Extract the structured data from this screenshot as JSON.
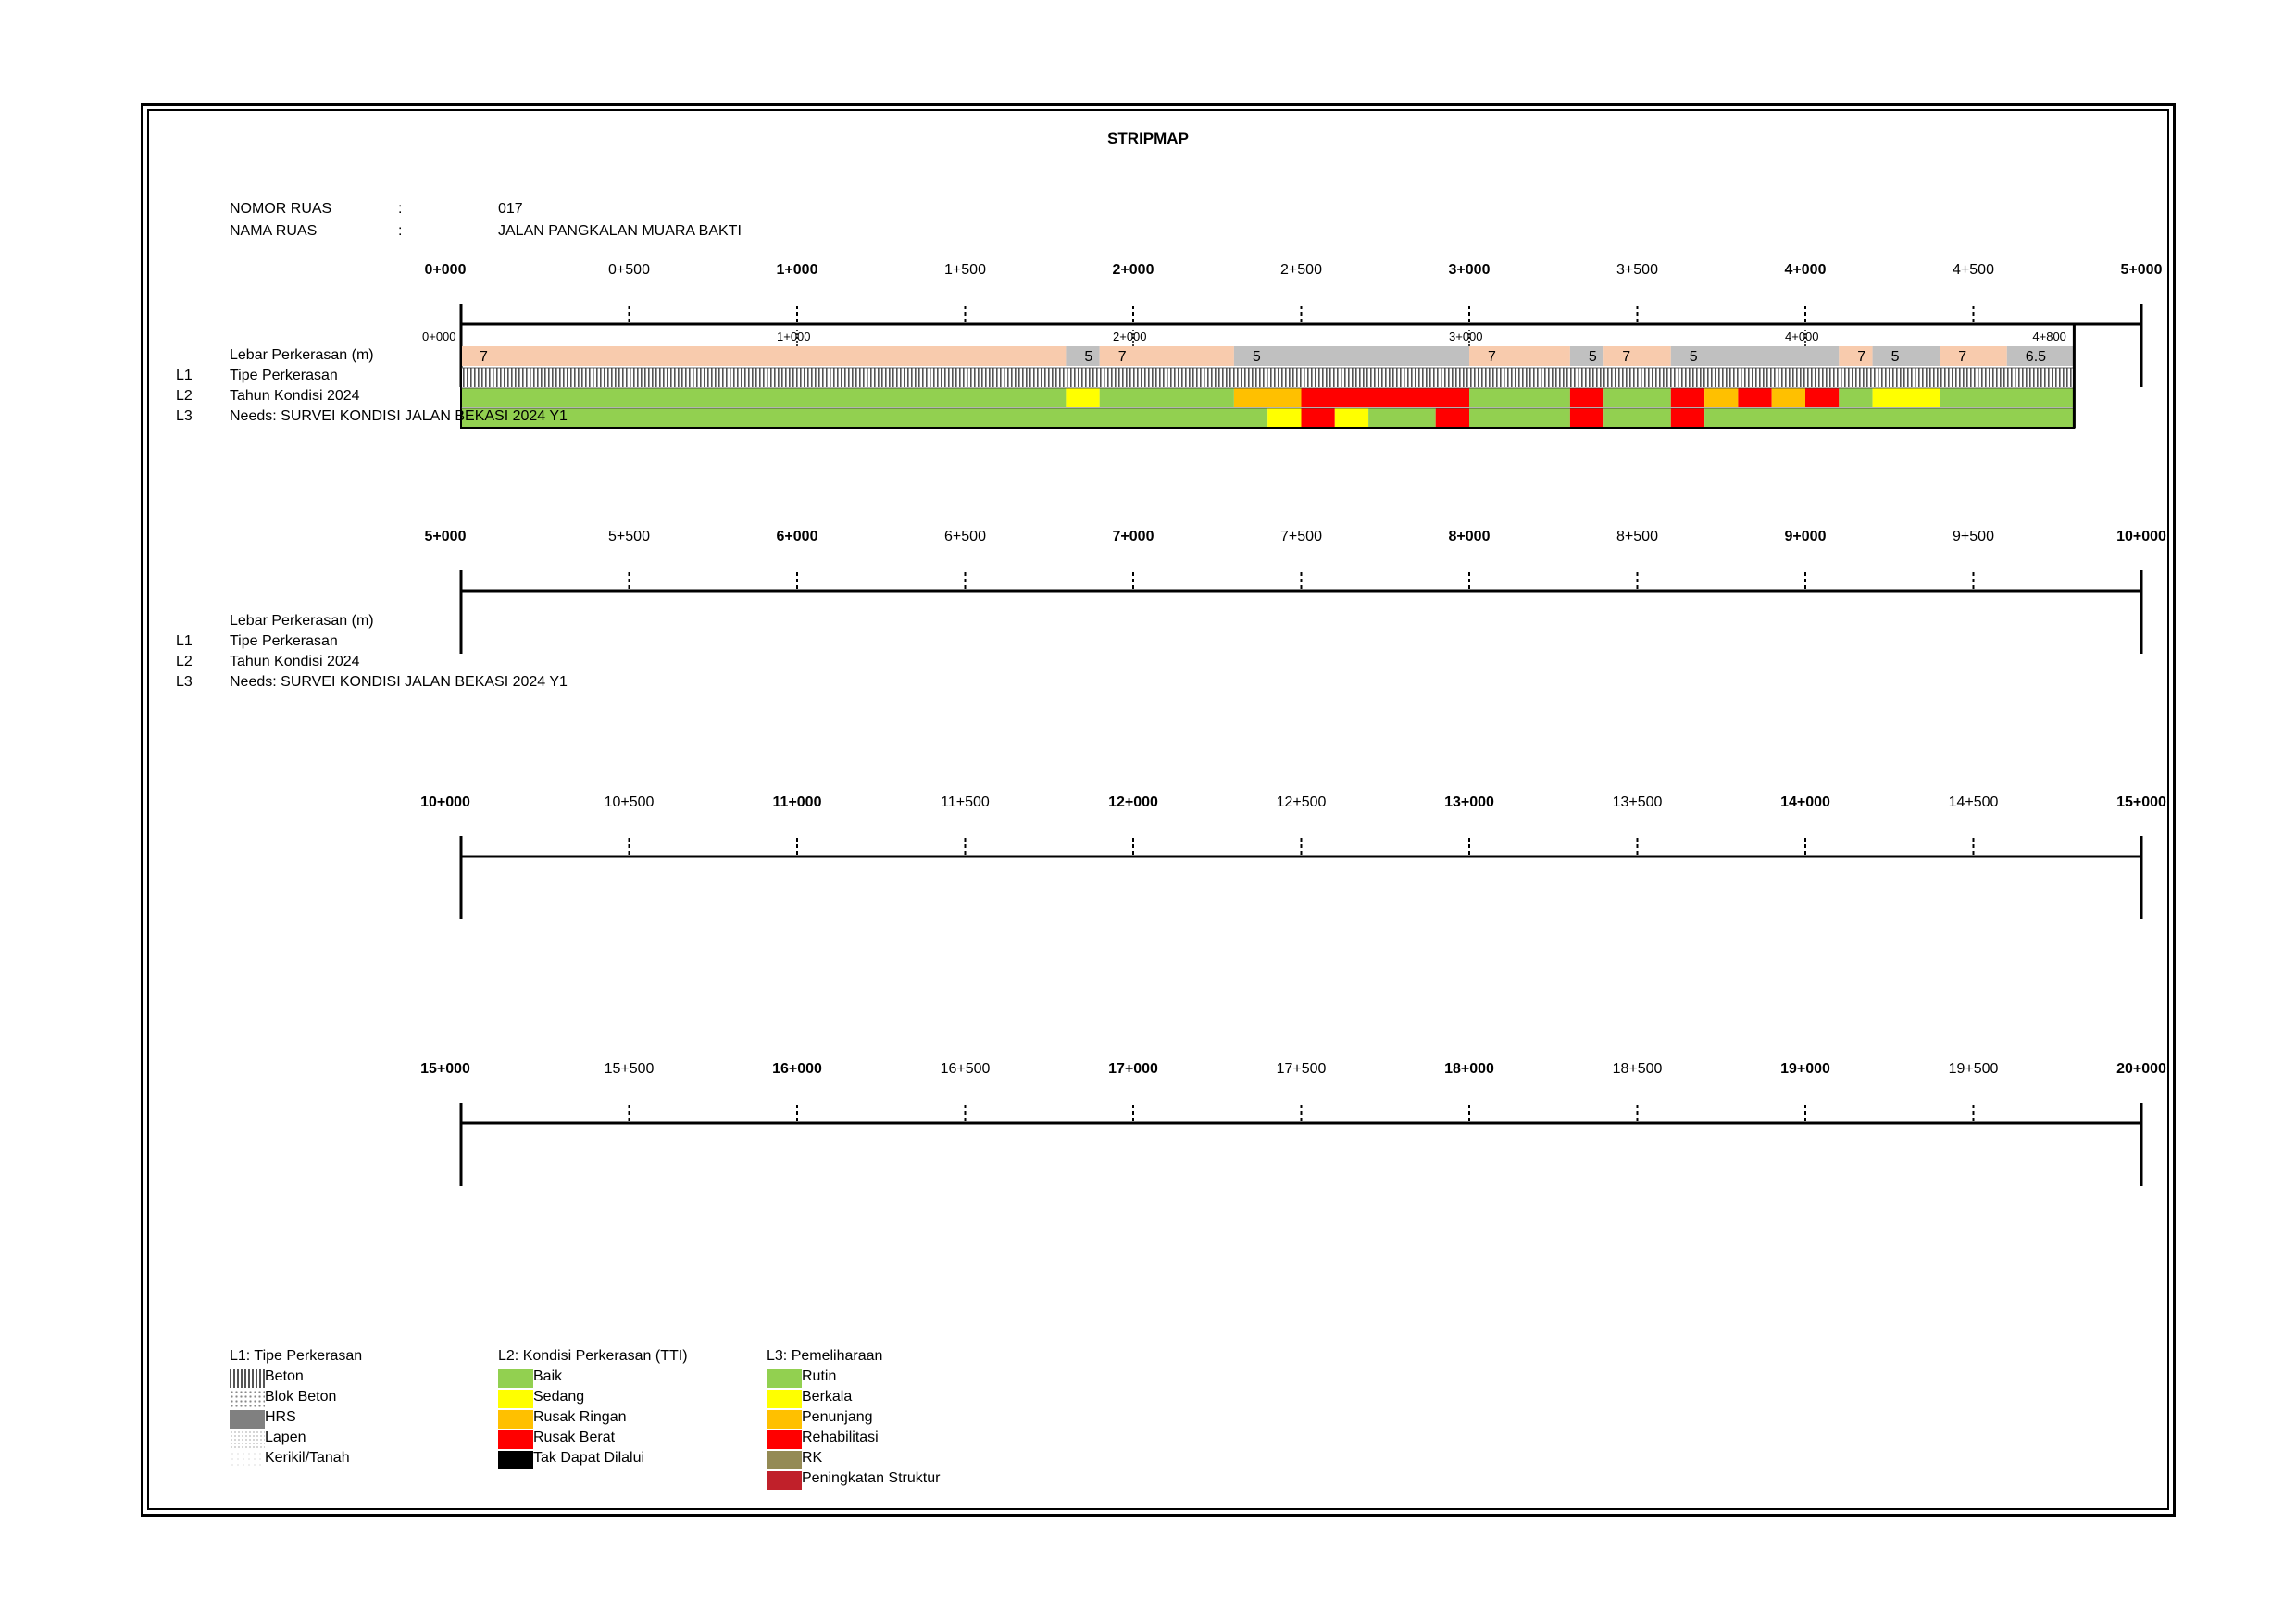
{
  "title": "STRIPMAP",
  "info": {
    "nomor_ruas_label": "NOMOR RUAS",
    "nomor_ruas_sep": ":",
    "nomor_ruas_value": "017",
    "nama_ruas_label": "NAMA RUAS",
    "nama_ruas_sep": ":",
    "nama_ruas_value": "JALAN PANGKALAN MUARA BAKTI"
  },
  "row_labels": {
    "width": "Lebar Perkerasan (m)",
    "l1_code": "L1",
    "l1": "Tipe Perkerasan",
    "l2_code": "L2",
    "l2": "Tahun Kondisi 2024",
    "l3_code": "L3",
    "l3": "Needs: SURVEI KONDISI JALAN BEKASI 2024 Y1"
  },
  "panels": [
    {
      "ticks": [
        "0+000",
        "0+500",
        "1+000",
        "1+500",
        "2+000",
        "2+500",
        "3+000",
        "3+500",
        "4+000",
        "4+500",
        "5+000"
      ]
    },
    {
      "ticks": [
        "5+000",
        "5+500",
        "6+000",
        "6+500",
        "7+000",
        "7+500",
        "8+000",
        "8+500",
        "9+000",
        "9+500",
        "10+000"
      ]
    },
    {
      "ticks": [
        "10+000",
        "10+500",
        "11+000",
        "11+500",
        "12+000",
        "12+500",
        "13+000",
        "13+500",
        "14+000",
        "14+500",
        "15+000"
      ]
    },
    {
      "ticks": [
        "15+000",
        "15+500",
        "16+000",
        "16+500",
        "17+000",
        "17+500",
        "18+000",
        "18+500",
        "19+000",
        "19+500",
        "20+000"
      ]
    }
  ],
  "segment_markers": [
    {
      "km": 0,
      "label": "0+000"
    },
    {
      "km": 1,
      "label": "1+000"
    },
    {
      "km": 2,
      "label": "2+000"
    },
    {
      "km": 3,
      "label": "3+000"
    },
    {
      "km": 4,
      "label": "4+000"
    },
    {
      "km": 4.8,
      "label": "4+800"
    }
  ],
  "road_length_km": 4.8,
  "width_segments": [
    {
      "from": 0.0,
      "to": 1.8,
      "value": "7",
      "color": "#f8cbad"
    },
    {
      "from": 1.8,
      "to": 1.9,
      "value": "5",
      "color": "#c0c0c0"
    },
    {
      "from": 1.9,
      "to": 2.3,
      "value": "7",
      "color": "#f8cbad"
    },
    {
      "from": 2.3,
      "to": 3.0,
      "value": "5",
      "color": "#c0c0c0"
    },
    {
      "from": 3.0,
      "to": 3.3,
      "value": "7",
      "color": "#f8cbad"
    },
    {
      "from": 3.3,
      "to": 3.4,
      "value": "5",
      "color": "#c0c0c0"
    },
    {
      "from": 3.4,
      "to": 3.6,
      "value": "7",
      "color": "#f8cbad"
    },
    {
      "from": 3.6,
      "to": 4.1,
      "value": "5",
      "color": "#c0c0c0"
    },
    {
      "from": 4.1,
      "to": 4.2,
      "value": "7",
      "color": "#f8cbad"
    },
    {
      "from": 4.2,
      "to": 4.4,
      "value": "5",
      "color": "#c0c0c0"
    },
    {
      "from": 4.4,
      "to": 4.6,
      "value": "7",
      "color": "#f8cbad"
    },
    {
      "from": 4.6,
      "to": 4.8,
      "value": "6.5",
      "color": "#c0c0c0"
    }
  ],
  "l1_segments": [
    {
      "from": 0.0,
      "to": 4.8,
      "type": "Beton"
    }
  ],
  "l2_segments": [
    {
      "from": 0.0,
      "to": 1.8,
      "condition": "Baik"
    },
    {
      "from": 1.8,
      "to": 1.9,
      "condition": "Sedang"
    },
    {
      "from": 1.9,
      "to": 2.3,
      "condition": "Baik"
    },
    {
      "from": 2.3,
      "to": 2.5,
      "condition": "Rusak Ringan"
    },
    {
      "from": 2.5,
      "to": 3.0,
      "condition": "Rusak Berat"
    },
    {
      "from": 3.0,
      "to": 3.3,
      "condition": "Baik"
    },
    {
      "from": 3.3,
      "to": 3.4,
      "condition": "Rusak Berat"
    },
    {
      "from": 3.4,
      "to": 3.6,
      "condition": "Baik"
    },
    {
      "from": 3.6,
      "to": 3.7,
      "condition": "Rusak Berat"
    },
    {
      "from": 3.7,
      "to": 3.8,
      "condition": "Rusak Ringan"
    },
    {
      "from": 3.8,
      "to": 3.9,
      "condition": "Rusak Berat"
    },
    {
      "from": 3.9,
      "to": 4.0,
      "condition": "Rusak Ringan"
    },
    {
      "from": 4.0,
      "to": 4.1,
      "condition": "Rusak Berat"
    },
    {
      "from": 4.1,
      "to": 4.2,
      "condition": "Baik"
    },
    {
      "from": 4.2,
      "to": 4.4,
      "condition": "Sedang"
    },
    {
      "from": 4.4,
      "to": 4.8,
      "condition": "Baik"
    }
  ],
  "l3_segments": [
    {
      "from": 0.0,
      "to": 2.4,
      "need": "Rutin"
    },
    {
      "from": 2.4,
      "to": 2.5,
      "need": "Berkala"
    },
    {
      "from": 2.5,
      "to": 2.6,
      "need": "Rehabilitasi"
    },
    {
      "from": 2.6,
      "to": 2.7,
      "need": "Berkala"
    },
    {
      "from": 2.7,
      "to": 2.9,
      "need": "Rutin"
    },
    {
      "from": 2.9,
      "to": 3.0,
      "need": "Rehabilitasi"
    },
    {
      "from": 3.0,
      "to": 3.3,
      "need": "Rutin"
    },
    {
      "from": 3.3,
      "to": 3.4,
      "need": "Rehabilitasi"
    },
    {
      "from": 3.4,
      "to": 3.6,
      "need": "Rutin"
    },
    {
      "from": 3.6,
      "to": 3.7,
      "need": "Rehabilitasi"
    },
    {
      "from": 3.7,
      "to": 4.8,
      "need": "Rutin"
    }
  ],
  "legend": {
    "l1": {
      "title": "L1: Tipe Perkerasan",
      "items": [
        {
          "label": "Beton",
          "pattern": "vlines"
        },
        {
          "label": "Blok Beton",
          "pattern": "dots"
        },
        {
          "label": "HRS",
          "pattern": "grey"
        },
        {
          "label": "Lapen",
          "pattern": "fine"
        },
        {
          "label": "Kerikil/Tanah",
          "pattern": "sparse"
        }
      ]
    },
    "l2": {
      "title": "L2: Kondisi Perkerasan (TTI)",
      "items": [
        {
          "label": "Baik",
          "color": "#92d050"
        },
        {
          "label": "Sedang",
          "color": "#ffff00"
        },
        {
          "label": "Rusak Ringan",
          "color": "#ffc000"
        },
        {
          "label": "Rusak Berat",
          "color": "#ff0000"
        },
        {
          "label": "Tak Dapat Dilalui",
          "color": "#000000"
        }
      ]
    },
    "l3": {
      "title": "L3: Pemeliharaan",
      "items": [
        {
          "label": "Rutin",
          "color": "#92d050"
        },
        {
          "label": "Berkala",
          "color": "#ffff00"
        },
        {
          "label": "Penunjang",
          "color": "#ffc000"
        },
        {
          "label": "Rehabilitasi",
          "color": "#ff0000"
        },
        {
          "label": "RK",
          "color": "#948a54"
        },
        {
          "label": "Peningkatan Struktur",
          "color": "#c0202a"
        }
      ]
    }
  }
}
